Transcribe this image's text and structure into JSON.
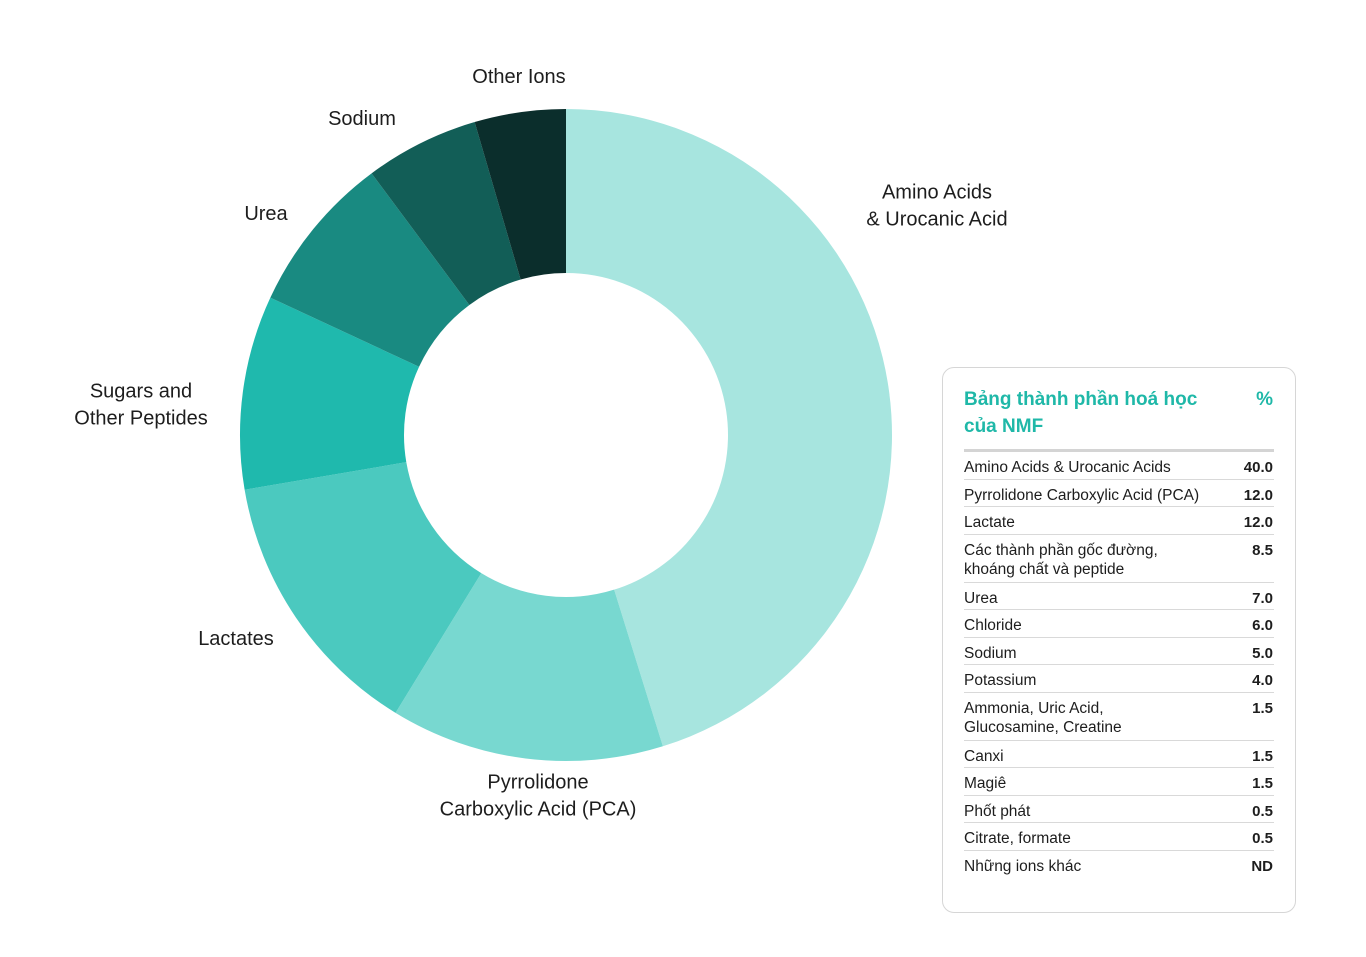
{
  "chart_data": {
    "type": "pie",
    "variant": "donut",
    "slices": [
      {
        "label": "Amino Acids & Urocanic Acid",
        "value": 40.0,
        "color": "#a7e5df"
      },
      {
        "label": "Pyrrolidone Carboxylic Acid (PCA)",
        "value": 12.0,
        "color": "#78d8d0"
      },
      {
        "label": "Lactates",
        "value": 12.0,
        "color": "#4bc9bf"
      },
      {
        "label": "Sugars and Other Peptides",
        "value": 8.5,
        "color": "#1fb9ad"
      },
      {
        "label": "Urea",
        "value": 7.0,
        "color": "#198a81"
      },
      {
        "label": "Sodium",
        "value": 5.0,
        "color": "#125e57"
      },
      {
        "label": "Other Ions",
        "value": 4.0,
        "color": "#0b2e2c"
      }
    ],
    "labels": [
      {
        "slice": 0,
        "lines": [
          "Amino Acids",
          "& Urocanic Acid"
        ]
      },
      {
        "slice": 1,
        "lines": [
          "Pyrrolidone",
          "Carboxylic Acid (PCA)"
        ]
      },
      {
        "slice": 2,
        "lines": [
          "Lactates"
        ]
      },
      {
        "slice": 3,
        "lines": [
          "Sugars and",
          "Other Peptides"
        ]
      },
      {
        "slice": 4,
        "lines": [
          "Urea"
        ]
      },
      {
        "slice": 5,
        "lines": [
          "Sodium"
        ]
      },
      {
        "slice": 6,
        "lines": [
          "Other Ions"
        ]
      }
    ]
  },
  "table": {
    "title": "Bảng thành phần hoá học của NMF",
    "pct_header": "%",
    "rows": [
      {
        "label": "Amino Acids & Urocanic Acids",
        "value": "40.0"
      },
      {
        "label": "Pyrrolidone Carboxylic Acid (PCA)",
        "value": "12.0"
      },
      {
        "label": "Lactate",
        "value": "12.0"
      },
      {
        "label": "Các thành phần gốc đường, khoáng chất và peptide",
        "value": "8.5"
      },
      {
        "label": "Urea",
        "value": "7.0"
      },
      {
        "label": "Chloride",
        "value": "6.0"
      },
      {
        "label": "Sodium",
        "value": "5.0"
      },
      {
        "label": "Potassium",
        "value": "4.0"
      },
      {
        "label": "Ammonia, Uric Acid, Glucosamine, Creatine",
        "value": "1.5"
      },
      {
        "label": "Canxi",
        "value": "1.5"
      },
      {
        "label": "Magiê",
        "value": "1.5"
      },
      {
        "label": "Phốt phát",
        "value": "0.5"
      },
      {
        "label": "Citrate, formate",
        "value": "0.5"
      },
      {
        "label": "Những ions khác",
        "value": "ND"
      }
    ]
  }
}
